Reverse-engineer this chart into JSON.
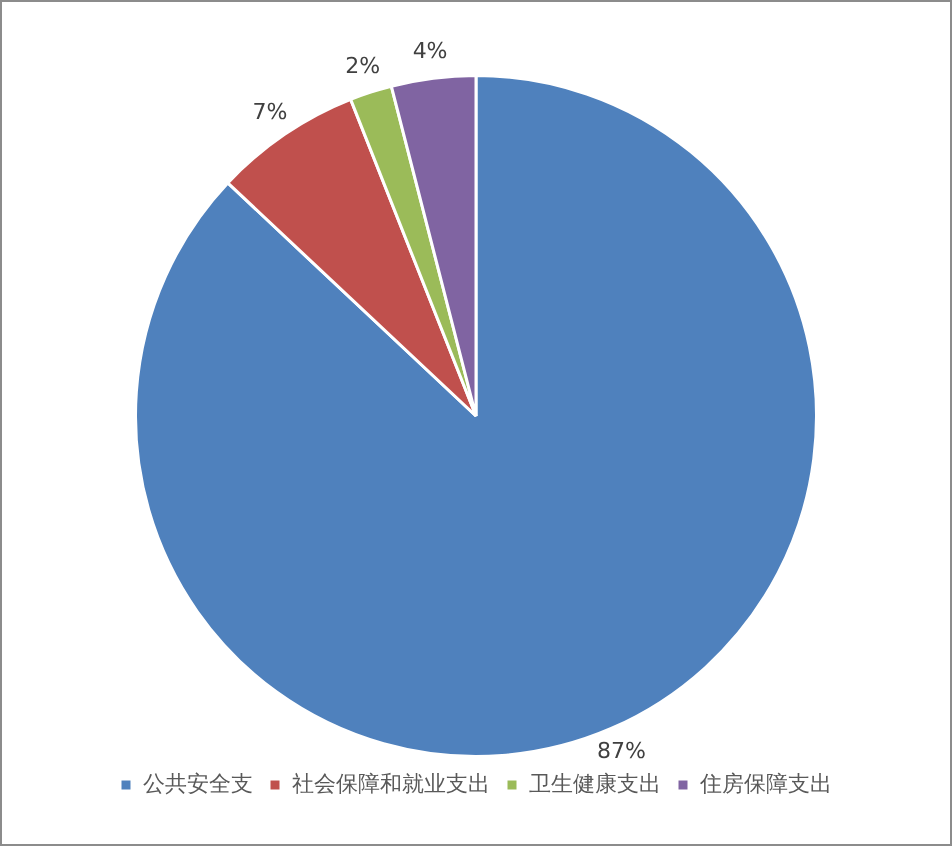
{
  "chart_data": {
    "type": "pie",
    "categories": [
      "公共安全支",
      "社会保障和就业支出",
      "卫生健康支出",
      "住房保障支出"
    ],
    "values": [
      87,
      7,
      2,
      4
    ],
    "colors": [
      "#4f81bd",
      "#c0504d",
      "#9bbb59",
      "#8064a2"
    ],
    "value_labels": [
      "87%",
      "7%",
      "2%",
      "4%"
    ],
    "legend": "bottom"
  }
}
